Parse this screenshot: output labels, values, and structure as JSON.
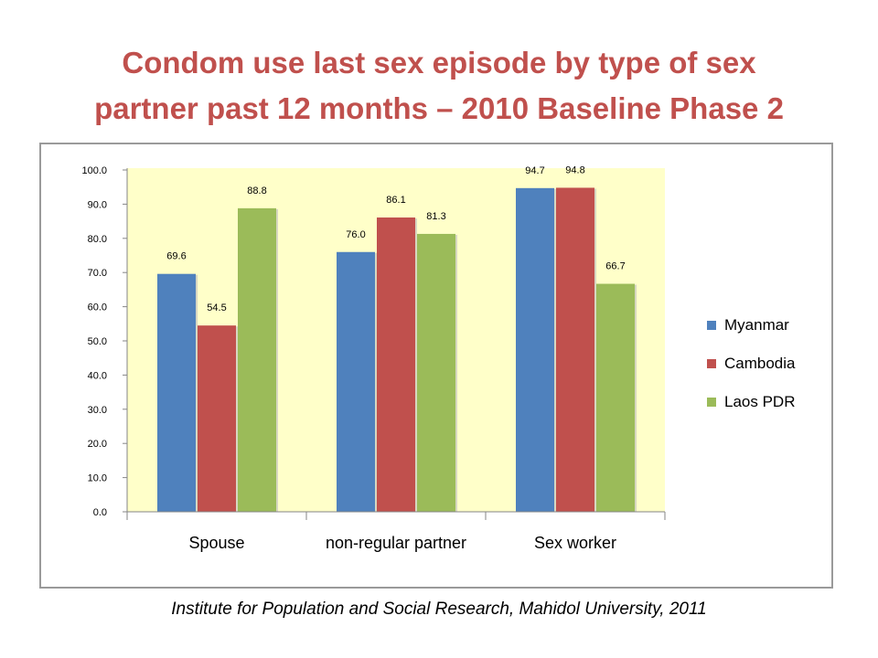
{
  "title": {
    "line1": "Condom use last sex episode by type of sex",
    "line2": "partner past 12 months – 2010 Baseline Phase 2"
  },
  "source": "Institute for Population and Social Research,  Mahidol University, 2011",
  "colors": {
    "title": "#c0504d",
    "plot_background": "#ffffc9",
    "Myanmar": "#4f81bd",
    "Cambodia": "#c0504d",
    "Laos PDR": "#9bbb59"
  },
  "chart_data": {
    "type": "bar",
    "title": "",
    "xlabel": "",
    "ylabel": "",
    "categories": [
      "Spouse",
      "non-regular partner",
      "Sex worker"
    ],
    "series": [
      {
        "name": "Myanmar",
        "values": [
          69.6,
          76.0,
          94.7
        ],
        "labels": [
          "69.6",
          "76.0",
          "94.7"
        ]
      },
      {
        "name": "Cambodia",
        "values": [
          54.5,
          86.1,
          94.8
        ],
        "labels": [
          "54.5",
          "86.1",
          "94.8"
        ]
      },
      {
        "name": "Laos PDR",
        "values": [
          88.8,
          81.3,
          66.7
        ],
        "labels": [
          "88.8",
          "81.3",
          "66.7"
        ]
      }
    ],
    "ylim": [
      0,
      100
    ],
    "yticks": [
      "0.0",
      "10.0",
      "20.0",
      "30.0",
      "40.0",
      "50.0",
      "60.0",
      "70.0",
      "80.0",
      "90.0",
      "100.0"
    ],
    "grid": false,
    "legend_position": "right"
  }
}
